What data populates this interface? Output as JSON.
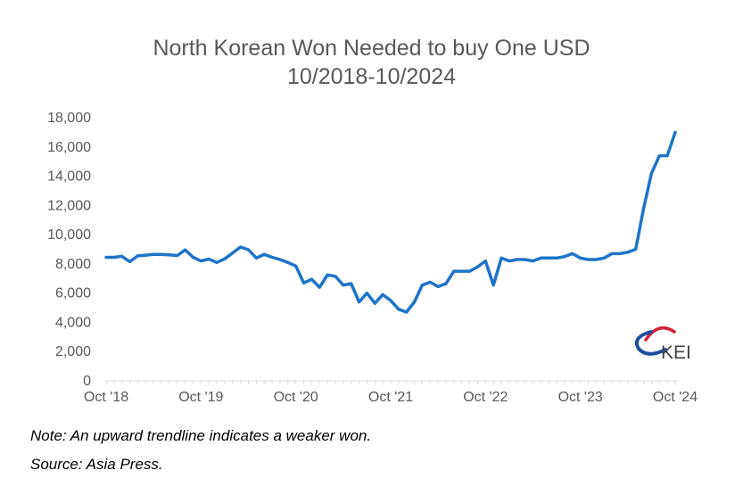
{
  "chart_data": {
    "type": "line",
    "title": "North Korean Won Needed to buy One USD",
    "subtitle": "10/2018-10/2024",
    "xlabel": "",
    "ylabel": "",
    "ylim": [
      0,
      18000
    ],
    "yticks": [
      "0",
      "2,000",
      "4,000",
      "6,000",
      "8,000",
      "10,000",
      "12,000",
      "14,000",
      "16,000",
      "18,000"
    ],
    "xticks": [
      "Oct '18",
      "Oct '19",
      "Oct '20",
      "Oct '21",
      "Oct '22",
      "Oct '23",
      "Oct '24"
    ],
    "grid": false,
    "line_color": "#1F74C7",
    "series": [
      {
        "values": [
          8450,
          8450,
          8520,
          8150,
          8550,
          8600,
          8650,
          8650,
          8620,
          8570,
          8960,
          8450,
          8200,
          8330,
          8100,
          8350,
          8750,
          9150,
          8970,
          8400,
          8650,
          8450,
          8300,
          8100,
          7850,
          6700,
          6950,
          6400,
          7250,
          7150,
          6550,
          6650,
          5400,
          6000,
          5300,
          5900,
          5500,
          4900,
          4700,
          5400,
          6550,
          6750,
          6450,
          6650,
          7500,
          7500,
          7500,
          7800,
          8200,
          6550,
          8400,
          8200,
          8300,
          8300,
          8200,
          8400,
          8400,
          8400,
          8500,
          8700,
          8400,
          8300,
          8300,
          8400,
          8700,
          8700,
          8800,
          9000,
          11800,
          14200,
          15400,
          15400,
          17000
        ]
      }
    ]
  },
  "notes": {
    "note": "Note: An upward trendline indicates a weaker won.",
    "source": "Source: Asia Press."
  },
  "logo": {
    "text": "KEI",
    "colors": [
      "#1F4E9E",
      "#D4203A"
    ]
  }
}
